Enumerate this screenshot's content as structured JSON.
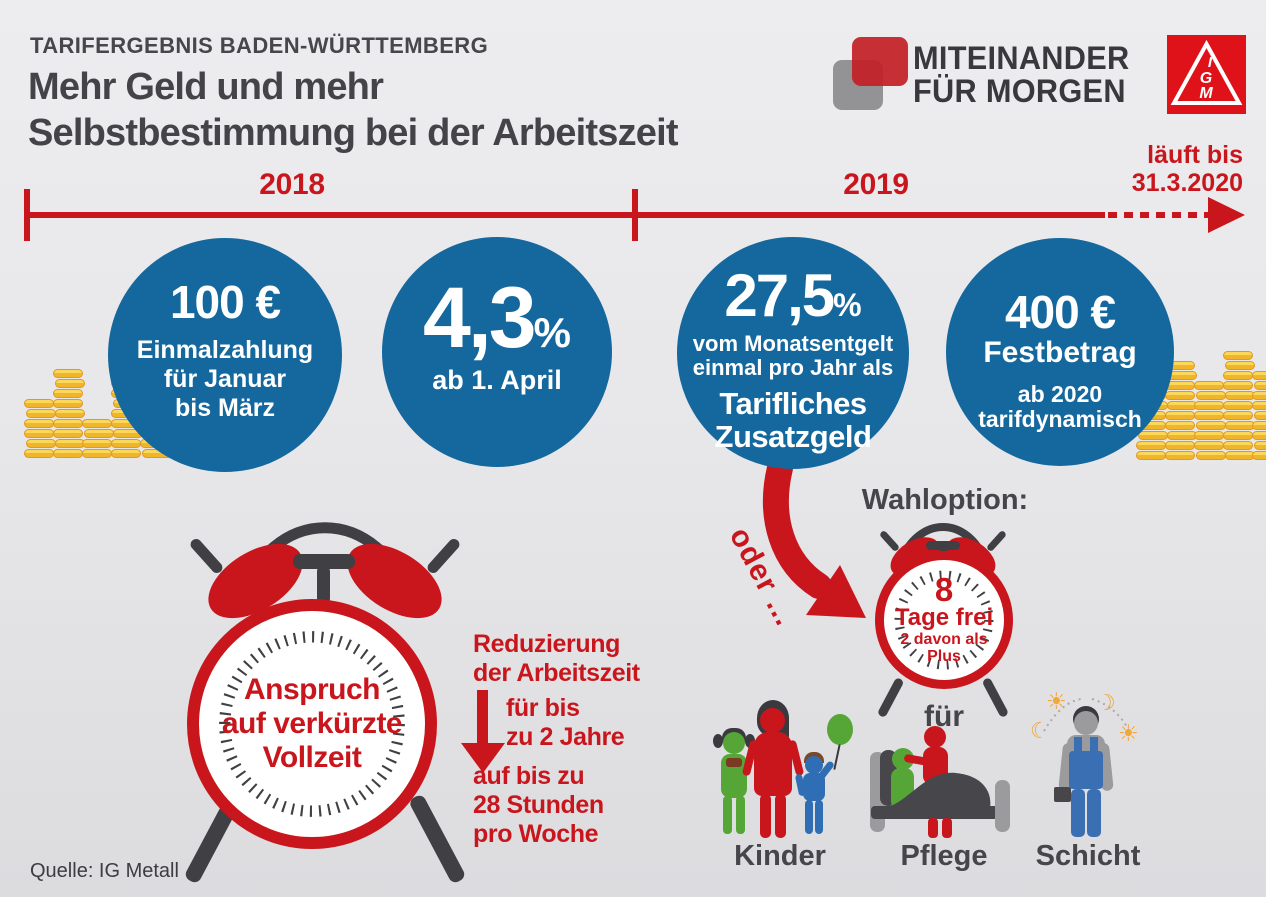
{
  "header": {
    "kicker": "TARIFERGEBNIS BADEN-WÜRTTEMBERG",
    "title_line1": "Mehr Geld und mehr",
    "title_line2": "Selbstbestimmung bei der Arbeitszeit"
  },
  "brand": {
    "line1": "MITEINANDER",
    "line2": "FÜR MORGEN",
    "monogram": "IGM"
  },
  "timeline": {
    "year_left": "2018",
    "year_right": "2019",
    "end_line1": "läuft bis",
    "end_line2": "31.3.2020"
  },
  "circles": {
    "c1": {
      "value": "100 €",
      "line1": "Einmalzahlung",
      "line2": "für Januar",
      "line3": "bis März"
    },
    "c2": {
      "value": "4,3",
      "unit": "%",
      "line1": "ab 1. April"
    },
    "c3": {
      "value": "27,5",
      "unit": "%",
      "line1": "vom Monatsentgelt",
      "line2": "einmal pro Jahr als",
      "line3": "Tarifliches",
      "line4": "Zusatzgeld"
    },
    "c4": {
      "value": "400 €",
      "line1": "Festbetrag",
      "line2": "ab 2020",
      "line3": "tarifdynamisch"
    }
  },
  "worktime": {
    "clock_line1": "Anspruch",
    "clock_line2": "auf verkürzte",
    "clock_line3": "Vollzeit",
    "reduction_line1": "Reduzierung",
    "reduction_line2": "der Arbeitszeit",
    "duration_line1": "für bis",
    "duration_line2": "zu 2 Jahre",
    "hours_line1": "auf bis zu",
    "hours_line2": "28 Stunden",
    "hours_line3": "pro Woche"
  },
  "option": {
    "or_label": "oder ...",
    "title": "Wahloption:",
    "clock_value": "8",
    "clock_line1": "Tage frei",
    "clock_line2": "2 davon als",
    "clock_line3": "Plus",
    "for_label": "für",
    "categories": [
      "Kinder",
      "Pflege",
      "Schicht"
    ]
  },
  "source": "Quelle: IG Metall",
  "colors": {
    "accent_red": "#c9161d",
    "circle_blue": "#15689e",
    "text_dark": "#45454a",
    "coin_gold": "#f6c632"
  }
}
